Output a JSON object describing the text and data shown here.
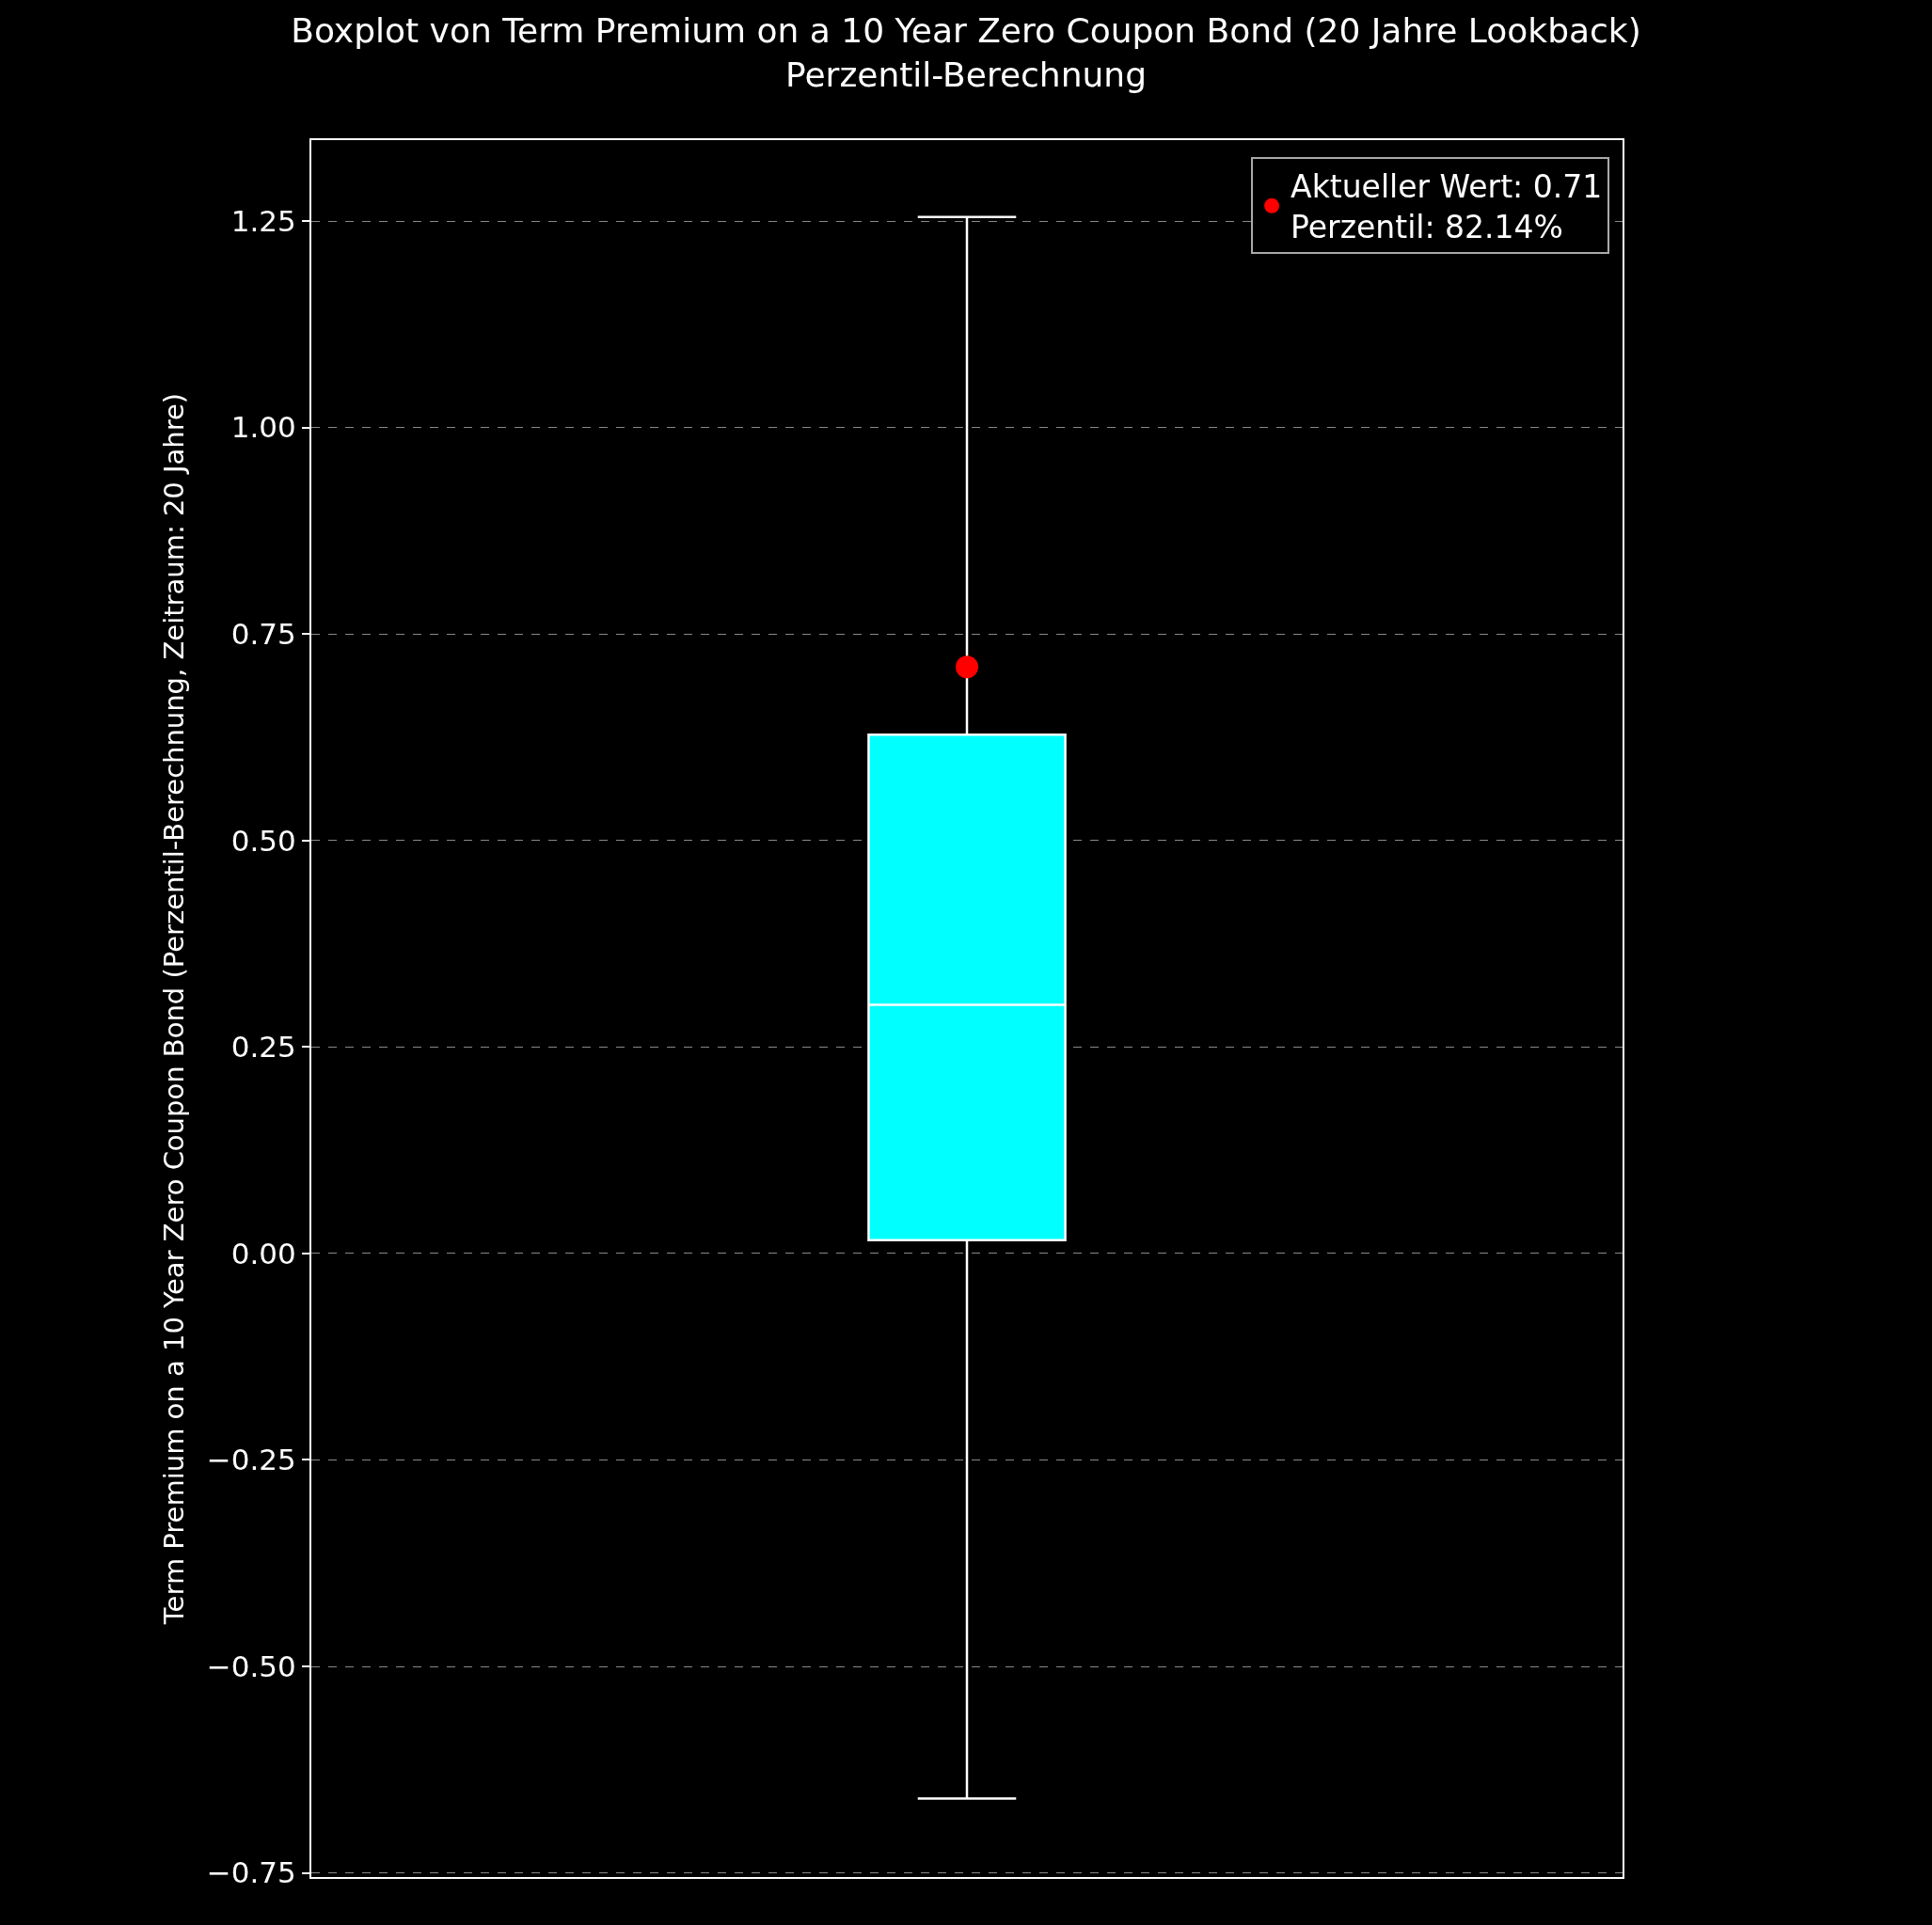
{
  "chart_data": {
    "type": "box",
    "title": "Boxplot von Term Premium on a 10 Year Zero Coupon Bond (20 Jahre Lookback)\nPerzentil-Berechnung",
    "ylabel": "Term Premium on a 10 Year Zero Coupon Bond (Perzentil-Berechnung, Zeitraum: 20 Jahre)",
    "categories": [
      null
    ],
    "series": [
      {
        "color": "#00ffff",
        "boxes": [
          {
            "low": -0.66,
            "q1": 0.016,
            "median": 0.301,
            "q3": 0.628,
            "high": 1.255
          }
        ]
      },
      {
        "type": "scatter",
        "name": "Aktueller Wert: 0.71\nPerzentil: 82.14%",
        "color": "#ff0000",
        "x": [
          null
        ],
        "values": [
          0.71
        ]
      }
    ],
    "ylim": [
      -0.755,
      1.348
    ],
    "yticks": [
      {
        "value": -0.75,
        "label": "−0.75"
      },
      {
        "value": -0.5,
        "label": "−0.50"
      },
      {
        "value": -0.25,
        "label": "−0.25"
      },
      {
        "value": 0,
        "label": "0.00"
      },
      {
        "value": 0.25,
        "label": "0.25"
      },
      {
        "value": 0.5,
        "label": "0.50"
      },
      {
        "value": 0.75,
        "label": "0.75"
      },
      {
        "value": 1,
        "label": "1.00"
      },
      {
        "value": 1.25,
        "label": "1.25"
      }
    ],
    "grid": "y",
    "legend": "top right",
    "tick_labels": "y",
    "marker": "circle"
  }
}
